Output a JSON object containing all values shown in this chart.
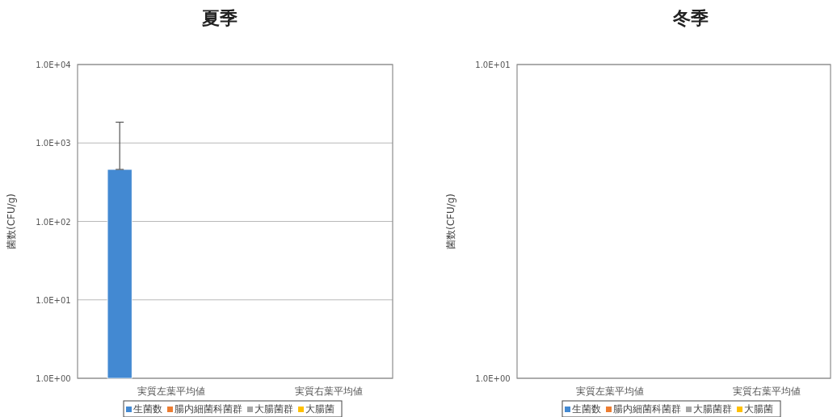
{
  "chart_data": [
    {
      "type": "bar",
      "title": "夏季",
      "ylabel": "菌数(CFU/g)",
      "categories": [
        "実質左葉平均値",
        "実質右葉平均値"
      ],
      "log": true,
      "ylim": [
        1,
        10000
      ],
      "yticks": [
        {
          "value": 1,
          "label": "1.0E+00"
        },
        {
          "value": 10,
          "label": "1.0E+01"
        },
        {
          "value": 100,
          "label": "1.0E+02"
        },
        {
          "value": 1000,
          "label": "1.0E+03"
        },
        {
          "value": 10000,
          "label": "1.0E+04"
        }
      ],
      "grid": "y",
      "legend": "bottom",
      "series": [
        {
          "name": "生菌数",
          "color": "#4389d2",
          "values": [
            460,
            null
          ],
          "errors": [
            [
              460,
              1840
            ],
            null
          ]
        },
        {
          "name": "腸内細菌科菌群",
          "color": "#ed7d31",
          "values": [
            null,
            null
          ]
        },
        {
          "name": "大腸菌群",
          "color": "#a5a5a5",
          "values": [
            null,
            null
          ]
        },
        {
          "name": "大腸菌",
          "color": "#ffc000",
          "values": [
            null,
            null
          ]
        }
      ]
    },
    {
      "type": "bar",
      "title": "冬季",
      "ylabel": "菌数(CFU/g)",
      "categories": [
        "実質左葉平均値",
        "実質右葉平均値"
      ],
      "log": true,
      "ylim": [
        1,
        10
      ],
      "yticks": [
        {
          "value": 1,
          "label": "1.0E+00"
        },
        {
          "value": 10,
          "label": "1.0E+01"
        }
      ],
      "grid": "y",
      "legend": "bottom",
      "series": [
        {
          "name": "生菌数",
          "color": "#4389d2",
          "values": [
            null,
            null
          ]
        },
        {
          "name": "腸内細菌科菌群",
          "color": "#ed7d31",
          "values": [
            null,
            null
          ]
        },
        {
          "name": "大腸菌群",
          "color": "#a5a5a5",
          "values": [
            null,
            null
          ]
        },
        {
          "name": "大腸菌",
          "color": "#ffc000",
          "values": [
            null,
            null
          ]
        }
      ]
    }
  ]
}
